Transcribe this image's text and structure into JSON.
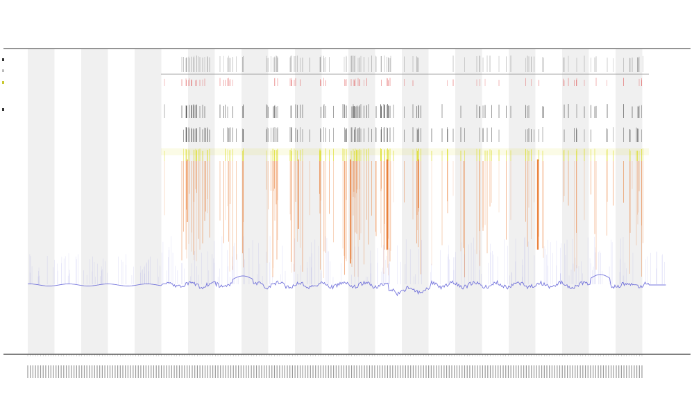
{
  "chart_data": {
    "type": "line",
    "title": "",
    "subtitle_1": "",
    "subtitle_2": "",
    "xlabel": "",
    "ylabel": "",
    "series": [
      {
        "name": "",
        "color": "#5b5bd6"
      }
    ],
    "legend": {
      "placement": "top-left",
      "entries": [
        "",
        "",
        "",
        ""
      ]
    },
    "annotation_rows": [
      {
        "name": "",
        "color": "#444444"
      },
      {
        "name": "",
        "color": "#e06060"
      },
      {
        "name": "",
        "color": "#222222"
      },
      {
        "name": "",
        "color": "#444444"
      },
      {
        "name": "",
        "color": "#d4d400"
      },
      {
        "name": "",
        "color": "#e07020"
      }
    ],
    "x_tick_count": 240,
    "shaded_band_count": 12,
    "grid": false,
    "colors": {
      "band": "#f0f0f0",
      "line": "#5b5bd6",
      "orange": "#e8762a",
      "yellow": "#dede30",
      "red": "#e05050",
      "axis": "#555555"
    }
  }
}
